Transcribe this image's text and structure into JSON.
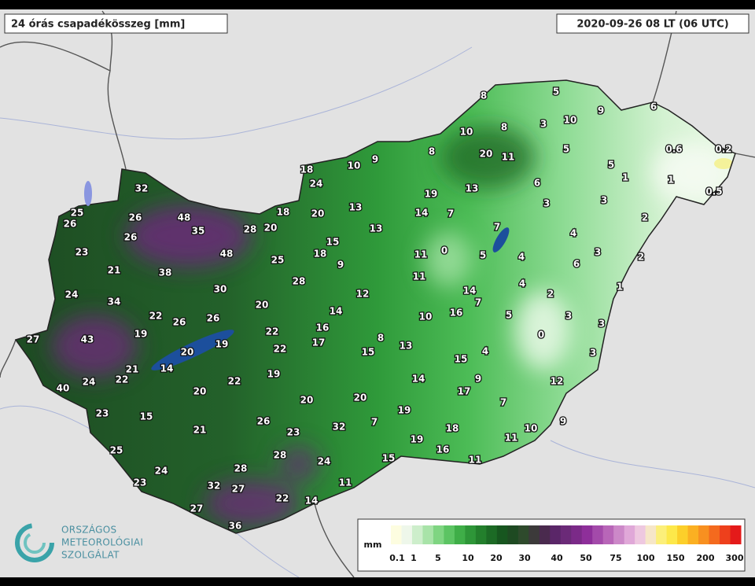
{
  "header": {
    "title": "24 órás csapadékösszeg [mm]",
    "timestamp": "2020-09-26 08 LT (06 UTC)"
  },
  "stations": [
    8,
    5,
    10,
    8,
    3,
    10,
    9,
    6,
    20,
    11,
    5,
    0.6,
    0.2,
    8,
    18,
    10,
    9,
    5,
    1,
    1,
    24,
    19,
    13,
    6,
    0.5,
    32,
    25,
    26,
    26,
    48,
    35,
    18,
    20,
    13,
    14,
    7,
    3,
    3,
    2,
    28,
    20,
    13,
    7,
    4,
    26,
    15,
    23,
    48,
    18,
    9,
    25,
    11,
    0,
    5,
    4,
    6,
    3,
    2,
    21,
    38,
    28,
    11,
    30,
    4,
    2,
    1,
    24,
    34,
    12,
    14,
    7,
    20,
    14,
    22,
    26,
    26,
    10,
    16,
    5,
    3,
    16,
    19,
    22,
    3,
    27,
    43,
    8,
    0,
    19,
    20,
    22,
    17,
    15,
    13,
    4,
    3,
    21,
    14,
    15,
    22,
    24,
    19,
    22,
    40,
    14,
    9,
    12,
    20,
    20,
    17,
    20,
    7,
    23,
    15,
    19,
    26,
    32,
    7,
    9,
    21,
    23,
    18,
    10,
    19,
    11,
    25,
    16,
    28,
    24,
    15,
    11,
    24,
    28,
    23,
    32,
    27,
    11,
    22,
    14,
    27,
    36
  ],
  "legend": {
    "unit": "mm",
    "ticks": [
      0.1,
      1,
      5,
      10,
      20,
      30,
      40,
      50,
      75,
      100,
      150,
      200,
      300
    ]
  },
  "logo": {
    "lines": [
      "ORSZÁGOS",
      "METEOROLÓGIAI",
      "SZOLGÁLAT"
    ]
  }
}
